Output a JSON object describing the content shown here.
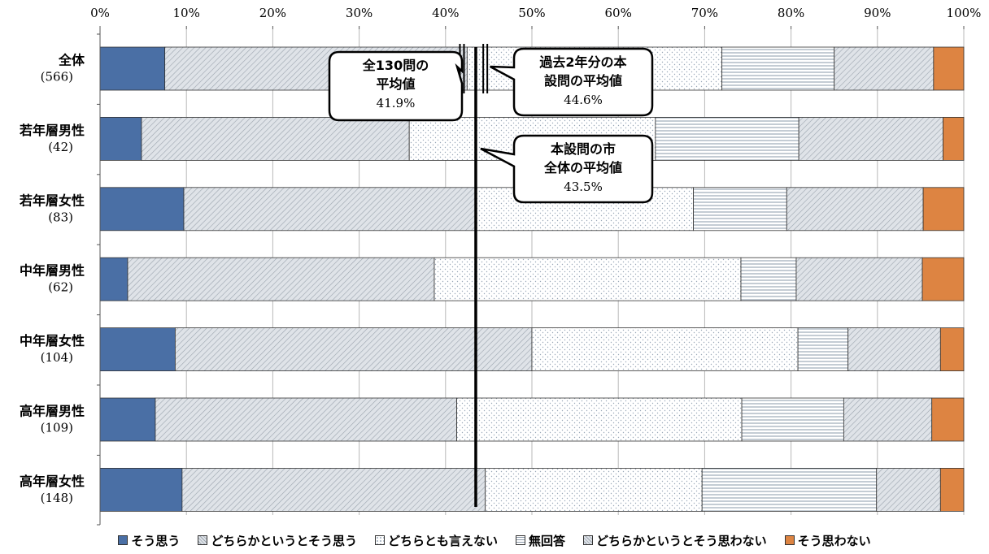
{
  "chart_data": {
    "type": "bar",
    "orientation": "horizontal-stacked-100",
    "categories": [
      {
        "name": "全体",
        "n": "(566)"
      },
      {
        "name": "若年層男性",
        "n": "(42)"
      },
      {
        "name": "若年層女性",
        "n": "(83)"
      },
      {
        "name": "中年層男性",
        "n": "(62)"
      },
      {
        "name": "中年層女性",
        "n": "(104)"
      },
      {
        "name": "高年層男性",
        "n": "(109)"
      },
      {
        "name": "高年層女性",
        "n": "(148)"
      }
    ],
    "series": [
      {
        "name": "そう思う",
        "color": "#4a6fa5",
        "pattern": "solid",
        "values": [
          7.5,
          4.8,
          9.7,
          3.2,
          8.7,
          6.4,
          9.5
        ]
      },
      {
        "name": "どちらかというとそう思う",
        "color": "#dfe3e8",
        "pattern": "diagonal",
        "values": [
          35.0,
          31.0,
          33.7,
          35.5,
          41.3,
          34.9,
          35.1
        ]
      },
      {
        "name": "どちらとも言えない",
        "color": "#ffffff",
        "pattern": "dots",
        "values": [
          29.5,
          28.5,
          25.3,
          35.5,
          30.8,
          33.0,
          25.1
        ]
      },
      {
        "name": "無回答",
        "color": "#ffffff",
        "pattern": "hlines",
        "values": [
          13.0,
          16.6,
          10.8,
          6.4,
          5.8,
          11.8,
          20.2
        ]
      },
      {
        "name": "どちらかというとそう思わない",
        "color": "#dfe3e8",
        "pattern": "diagonal",
        "values": [
          11.5,
          16.7,
          15.8,
          14.6,
          10.7,
          10.2,
          7.4
        ]
      },
      {
        "name": "そう思わない",
        "color": "#dd8442",
        "pattern": "solid",
        "values": [
          3.5,
          2.4,
          4.7,
          4.8,
          2.7,
          3.7,
          2.7
        ]
      }
    ],
    "xlim": [
      0,
      100
    ],
    "x_ticks": [
      "0%",
      "10%",
      "20%",
      "30%",
      "40%",
      "50%",
      "60%",
      "70%",
      "80%",
      "90%",
      "100%"
    ],
    "grid": true,
    "legend_position": "bottom",
    "reference_lines": [
      {
        "value": 41.9,
        "style": "short-double",
        "label_lines": [
          "全130問の",
          "平均値"
        ],
        "value_label": "41.9%"
      },
      {
        "value": 44.6,
        "style": "short-double",
        "label_lines": [
          "過去2年分の本",
          "設問の平均値"
        ],
        "value_label": "44.6%"
      },
      {
        "value": 43.5,
        "style": "full",
        "label_lines": [
          "本設問の市",
          "全体の平均値"
        ],
        "value_label": "43.5%"
      }
    ]
  }
}
